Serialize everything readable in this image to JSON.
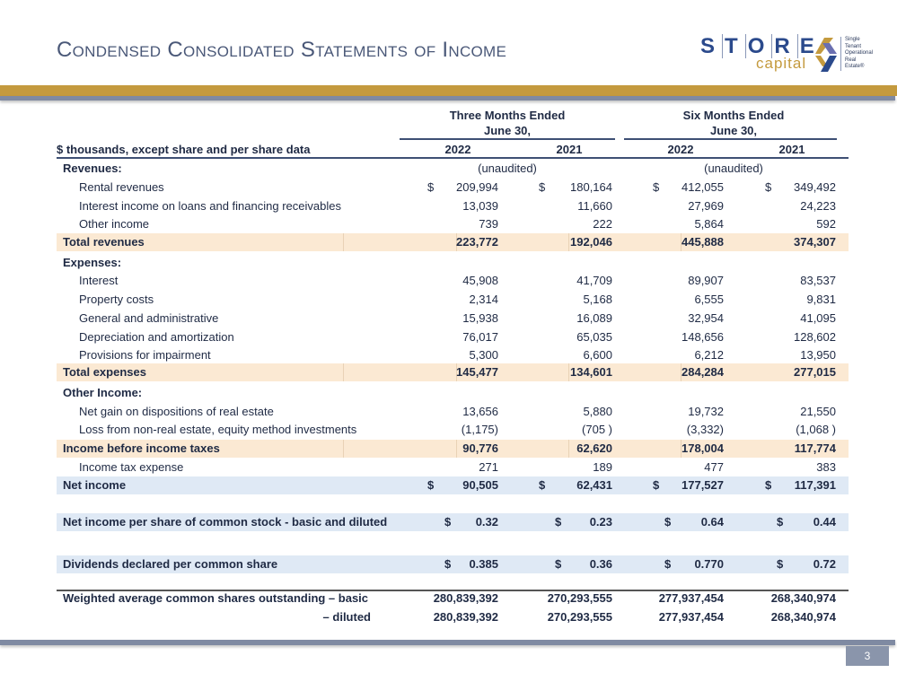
{
  "title": "Condensed Consolidated Statements of Income",
  "logo": {
    "word": "STORE",
    "sub": "capital",
    "tagline": [
      "Single",
      "Tenant",
      "Operational",
      "Real",
      "Estate®"
    ],
    "colors": {
      "blue": "#2b4a8c",
      "gold": "#c49a3e"
    }
  },
  "header": {
    "group1": [
      "Three Months Ended",
      "June 30,"
    ],
    "group2": [
      "Six Months Ended",
      "June 30,"
    ],
    "units": "$ thousands, except share and per share data",
    "years": [
      "2022",
      "2021",
      "2022",
      "2021"
    ]
  },
  "rows": [
    {
      "label": "Revenues:",
      "style": "section",
      "unaudited": [
        "(unaudited)",
        "(unaudited)"
      ]
    },
    {
      "label": "Rental revenues",
      "style": "item",
      "dollar": true,
      "values": [
        "209,994",
        "180,164",
        "412,055",
        "349,492"
      ]
    },
    {
      "label": "Interest income on loans and financing receivables",
      "style": "item",
      "values": [
        "13,039",
        "11,660",
        "27,969",
        "24,223"
      ]
    },
    {
      "label": "Other income",
      "style": "item",
      "values": [
        "739",
        "222",
        "5,864",
        "592"
      ]
    },
    {
      "label": "Total revenues",
      "style": "total",
      "values": [
        "223,772",
        "192,046",
        "445,888",
        "374,307"
      ]
    },
    {
      "label": "Expenses:",
      "style": "section"
    },
    {
      "label": "Interest",
      "style": "item",
      "values": [
        "45,908",
        "41,709",
        "89,907",
        "83,537"
      ]
    },
    {
      "label": "Property costs",
      "style": "item",
      "values": [
        "2,314",
        "5,168",
        "6,555",
        "9,831"
      ]
    },
    {
      "label": "General and administrative",
      "style": "item",
      "values": [
        "15,938",
        "16,089",
        "32,954",
        "41,095"
      ]
    },
    {
      "label": "Depreciation and amortization",
      "style": "item",
      "values": [
        "76,017",
        "65,035",
        "148,656",
        "128,602"
      ]
    },
    {
      "label": "Provisions for impairment",
      "style": "item",
      "values": [
        "5,300",
        "6,600",
        "6,212",
        "13,950"
      ]
    },
    {
      "label": "Total expenses",
      "style": "total",
      "values": [
        "145,477",
        "134,601",
        "284,284",
        "277,015"
      ]
    },
    {
      "label": "Other Income:",
      "style": "section"
    },
    {
      "label": "Net gain on dispositions of real estate",
      "style": "item",
      "values": [
        "13,656",
        "5,880",
        "19,732",
        "21,550"
      ]
    },
    {
      "label": "Loss from non-real estate, equity method investments",
      "style": "item",
      "values": [
        "(1,175)",
        "(705 )",
        "(3,332)",
        "(1,068 )"
      ]
    },
    {
      "label": "Income before income taxes",
      "style": "total",
      "values": [
        "90,776",
        "62,620",
        "178,004",
        "117,774"
      ]
    },
    {
      "label": "Income tax expense",
      "style": "item",
      "values": [
        "271",
        "189",
        "477",
        "383"
      ]
    },
    {
      "label": "Net income",
      "style": "net",
      "dollar": true,
      "values": [
        "90,505",
        "62,431",
        "177,527",
        "117,391"
      ]
    },
    {
      "label": "Net income per share of common stock - basic and diluted",
      "style": "net",
      "dollar": true,
      "wide": true,
      "values": [
        "0.32",
        "0.23",
        "0.64",
        "0.44"
      ]
    },
    {
      "label": "Dividends declared per common share",
      "style": "net",
      "dollar": true,
      "wide": true,
      "values": [
        "0.385",
        "0.36",
        "0.770",
        "0.72"
      ]
    },
    {
      "label": "Weighted average common shares outstanding – basic",
      "style": "shares",
      "values": [
        "280,839,392",
        "270,293,555",
        "277,937,454",
        "268,340,974"
      ]
    },
    {
      "label": "– diluted",
      "style": "shares-right",
      "values": [
        "280,839,392",
        "270,293,555",
        "277,937,454",
        "268,340,974"
      ]
    }
  ],
  "currency_symbol": "$",
  "page_number": "3"
}
